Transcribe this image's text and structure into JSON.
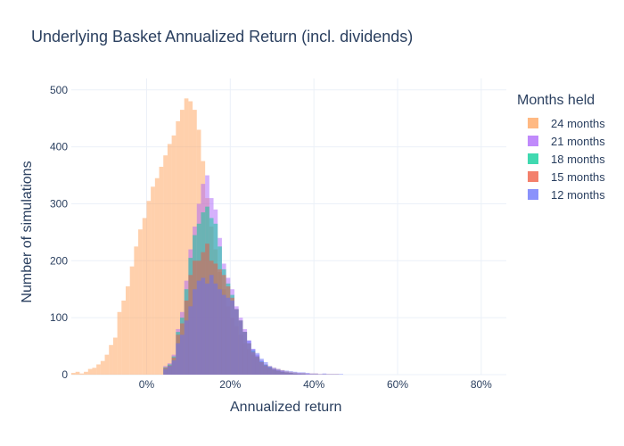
{
  "chart_data": {
    "type": "histogram",
    "title": "Underlying Basket Annualized Return (incl. dividends)",
    "xlabel": "Annualized return",
    "ylabel": "Number of simulations",
    "xlim": [
      -0.18,
      0.86
    ],
    "ylim": [
      0,
      520
    ],
    "x_ticks": [
      0,
      0.2,
      0.4,
      0.6,
      0.8
    ],
    "x_tick_labels": [
      "0%",
      "20%",
      "40%",
      "60%",
      "80%"
    ],
    "y_ticks": [
      0,
      100,
      200,
      300,
      400,
      500
    ],
    "y_tick_labels": [
      "0",
      "100",
      "200",
      "300",
      "400",
      "500"
    ],
    "bin_width": 0.01,
    "barmode": "overlay",
    "grid": true,
    "legend_title": "Months held",
    "legend_position": "right",
    "series": [
      {
        "name": "24 months",
        "color": "#FFA15A",
        "opacity": 0.5,
        "start": -0.18,
        "values": [
          3,
          5,
          2,
          5,
          10,
          12,
          18,
          24,
          35,
          52,
          65,
          110,
          130,
          155,
          190,
          225,
          255,
          275,
          305,
          330,
          345,
          365,
          385,
          405,
          420,
          445,
          465,
          485,
          480,
          465,
          430,
          375,
          310,
          260,
          220,
          180,
          150,
          120,
          100,
          85,
          70,
          55,
          45,
          35,
          30,
          22,
          18,
          15,
          12,
          10,
          8,
          6,
          5,
          4,
          3,
          3,
          2,
          2,
          2,
          1,
          1,
          1,
          1,
          1
        ]
      },
      {
        "name": "21 months",
        "color": "#AB63FA",
        "opacity": 0.5,
        "start": 0.04,
        "values": [
          15,
          20,
          35,
          80,
          110,
          165,
          220,
          260,
          300,
          335,
          350,
          310,
          290,
          240,
          195,
          170,
          150,
          120,
          100,
          80,
          60,
          45,
          35,
          25,
          18,
          14,
          10,
          8,
          6,
          4,
          3,
          2,
          2,
          1,
          1
        ]
      },
      {
        "name": "18 months",
        "color": "#00CC96",
        "opacity": 0.5,
        "start": 0.04,
        "values": [
          13,
          18,
          32,
          75,
          100,
          150,
          205,
          245,
          265,
          285,
          295,
          275,
          265,
          225,
          185,
          160,
          140,
          115,
          95,
          75,
          55,
          42,
          32,
          23,
          17,
          13,
          9,
          7,
          5,
          4,
          3,
          2,
          1,
          1
        ]
      },
      {
        "name": "15 months",
        "color": "#EF553B",
        "opacity": 0.5,
        "start": 0.04,
        "values": [
          12,
          16,
          30,
          70,
          90,
          130,
          175,
          200,
          200,
          215,
          230,
          200,
          195,
          185,
          175,
          155,
          135,
          115,
          95,
          75,
          55,
          40,
          32,
          22,
          16,
          12,
          9,
          7,
          5,
          4,
          3,
          2,
          1,
          1
        ]
      },
      {
        "name": "12 months",
        "color": "#636EFA",
        "opacity": 0.5,
        "start": 0.04,
        "values": [
          10,
          15,
          25,
          55,
          70,
          95,
          120,
          150,
          165,
          170,
          160,
          175,
          160,
          150,
          140,
          135,
          130,
          115,
          95,
          75,
          60,
          45,
          38,
          28,
          22,
          15,
          12,
          10,
          8,
          7,
          6,
          5,
          4,
          4,
          3,
          2,
          2,
          1,
          2,
          1,
          1,
          1,
          1
        ]
      }
    ]
  }
}
